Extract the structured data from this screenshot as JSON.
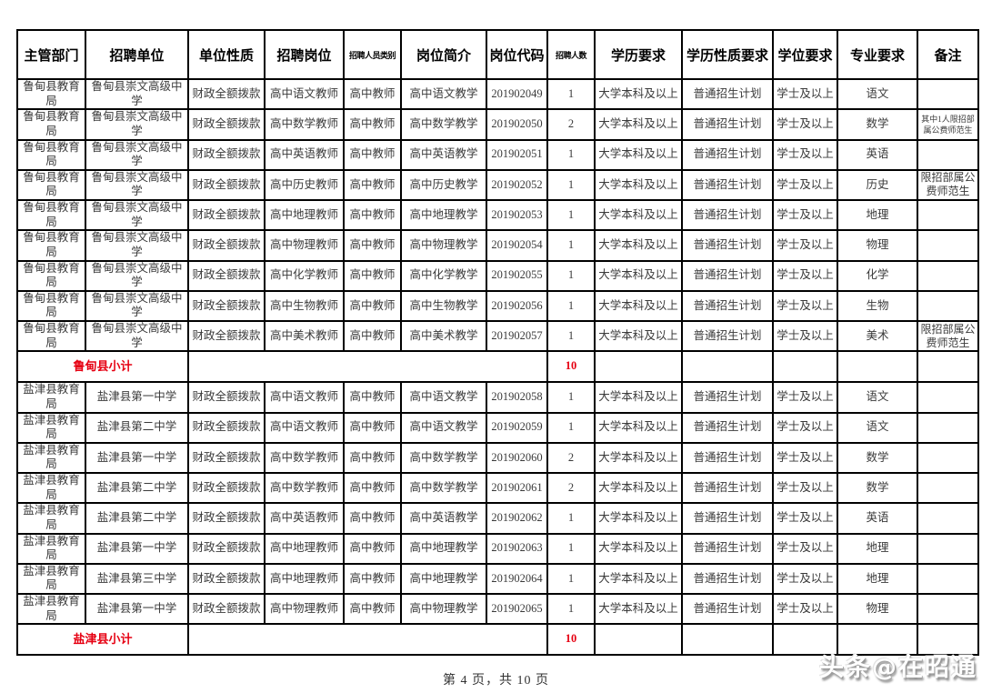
{
  "page": {
    "footer_text": "第 4 页，共 10 页",
    "watermark": "头条@在昭通"
  },
  "colors": {
    "border": "#000000",
    "text": "#333333",
    "subtotal_red": "#e60012",
    "background": "#ffffff"
  },
  "table": {
    "headers": [
      "主管部门",
      "招聘单位",
      "单位性质",
      "招聘岗位",
      "招聘人员类别",
      "岗位简介",
      "岗位代码",
      "招聘人数",
      "学历要求",
      "学历性质要求",
      "学位要求",
      "专业要求",
      "备注"
    ],
    "sections": [
      {
        "rows": [
          {
            "dept": "鲁甸县教育局",
            "unit": "鲁甸县崇文高级中学",
            "nature": "财政全额拨款",
            "post": "高中语文教师",
            "category": "高中教师",
            "intro": "高中语文教学",
            "code": "201902049",
            "count": "1",
            "edu": "大学本科及以上",
            "edu_type": "普通招生计划",
            "degree": "学士及以上",
            "major": "语文",
            "remark": "",
            "remark_small": false
          },
          {
            "dept": "鲁甸县教育局",
            "unit": "鲁甸县崇文高级中学",
            "nature": "财政全额拨款",
            "post": "高中数学教师",
            "category": "高中教师",
            "intro": "高中数学教学",
            "code": "201902050",
            "count": "2",
            "edu": "大学本科及以上",
            "edu_type": "普通招生计划",
            "degree": "学士及以上",
            "major": "数学",
            "remark": "其中1人限招部属公费师范生",
            "remark_small": true
          },
          {
            "dept": "鲁甸县教育局",
            "unit": "鲁甸县崇文高级中学",
            "nature": "财政全额拨款",
            "post": "高中英语教师",
            "category": "高中教师",
            "intro": "高中英语教学",
            "code": "201902051",
            "count": "1",
            "edu": "大学本科及以上",
            "edu_type": "普通招生计划",
            "degree": "学士及以上",
            "major": "英语",
            "remark": "",
            "remark_small": false
          },
          {
            "dept": "鲁甸县教育局",
            "unit": "鲁甸县崇文高级中学",
            "nature": "财政全额拨款",
            "post": "高中历史教师",
            "category": "高中教师",
            "intro": "高中历史教学",
            "code": "201902052",
            "count": "1",
            "edu": "大学本科及以上",
            "edu_type": "普通招生计划",
            "degree": "学士及以上",
            "major": "历史",
            "remark": "限招部属公费师范生",
            "remark_small": false
          },
          {
            "dept": "鲁甸县教育局",
            "unit": "鲁甸县崇文高级中学",
            "nature": "财政全额拨款",
            "post": "高中地理教师",
            "category": "高中教师",
            "intro": "高中地理教学",
            "code": "201902053",
            "count": "1",
            "edu": "大学本科及以上",
            "edu_type": "普通招生计划",
            "degree": "学士及以上",
            "major": "地理",
            "remark": "",
            "remark_small": false
          },
          {
            "dept": "鲁甸县教育局",
            "unit": "鲁甸县崇文高级中学",
            "nature": "财政全额拨款",
            "post": "高中物理教师",
            "category": "高中教师",
            "intro": "高中物理教学",
            "code": "201902054",
            "count": "1",
            "edu": "大学本科及以上",
            "edu_type": "普通招生计划",
            "degree": "学士及以上",
            "major": "物理",
            "remark": "",
            "remark_small": false
          },
          {
            "dept": "鲁甸县教育局",
            "unit": "鲁甸县崇文高级中学",
            "nature": "财政全额拨款",
            "post": "高中化学教师",
            "category": "高中教师",
            "intro": "高中化学教学",
            "code": "201902055",
            "count": "1",
            "edu": "大学本科及以上",
            "edu_type": "普通招生计划",
            "degree": "学士及以上",
            "major": "化学",
            "remark": "",
            "remark_small": false
          },
          {
            "dept": "鲁甸县教育局",
            "unit": "鲁甸县崇文高级中学",
            "nature": "财政全额拨款",
            "post": "高中生物教师",
            "category": "高中教师",
            "intro": "高中生物教学",
            "code": "201902056",
            "count": "1",
            "edu": "大学本科及以上",
            "edu_type": "普通招生计划",
            "degree": "学士及以上",
            "major": "生物",
            "remark": "",
            "remark_small": false
          },
          {
            "dept": "鲁甸县教育局",
            "unit": "鲁甸县崇文高级中学",
            "nature": "财政全额拨款",
            "post": "高中美术教师",
            "category": "高中教师",
            "intro": "高中美术教学",
            "code": "201902057",
            "count": "1",
            "edu": "大学本科及以上",
            "edu_type": "普通招生计划",
            "degree": "学士及以上",
            "major": "美术",
            "remark": "限招部属公费师范生",
            "remark_small": false
          }
        ],
        "subtotal": {
          "label": "鲁甸县小计",
          "count": "10"
        }
      },
      {
        "rows": [
          {
            "dept": "盐津县教育局",
            "unit": "盐津县第一中学",
            "nature": "财政全额拨款",
            "post": "高中语文教师",
            "category": "高中教师",
            "intro": "高中语文教学",
            "code": "201902058",
            "count": "1",
            "edu": "大学本科及以上",
            "edu_type": "普通招生计划",
            "degree": "学士及以上",
            "major": "语文",
            "remark": "",
            "remark_small": false
          },
          {
            "dept": "盐津县教育局",
            "unit": "盐津县第二中学",
            "nature": "财政全额拨款",
            "post": "高中语文教师",
            "category": "高中教师",
            "intro": "高中语文教学",
            "code": "201902059",
            "count": "1",
            "edu": "大学本科及以上",
            "edu_type": "普通招生计划",
            "degree": "学士及以上",
            "major": "语文",
            "remark": "",
            "remark_small": false
          },
          {
            "dept": "盐津县教育局",
            "unit": "盐津县第一中学",
            "nature": "财政全额拨款",
            "post": "高中数学教师",
            "category": "高中教师",
            "intro": "高中数学教学",
            "code": "201902060",
            "count": "2",
            "edu": "大学本科及以上",
            "edu_type": "普通招生计划",
            "degree": "学士及以上",
            "major": "数学",
            "remark": "",
            "remark_small": false
          },
          {
            "dept": "盐津县教育局",
            "unit": "盐津县第二中学",
            "nature": "财政全额拨款",
            "post": "高中数学教师",
            "category": "高中教师",
            "intro": "高中数学教学",
            "code": "201902061",
            "count": "2",
            "edu": "大学本科及以上",
            "edu_type": "普通招生计划",
            "degree": "学士及以上",
            "major": "数学",
            "remark": "",
            "remark_small": false
          },
          {
            "dept": "盐津县教育局",
            "unit": "盐津县第二中学",
            "nature": "财政全额拨款",
            "post": "高中英语教师",
            "category": "高中教师",
            "intro": "高中英语教学",
            "code": "201902062",
            "count": "1",
            "edu": "大学本科及以上",
            "edu_type": "普通招生计划",
            "degree": "学士及以上",
            "major": "英语",
            "remark": "",
            "remark_small": false
          },
          {
            "dept": "盐津县教育局",
            "unit": "盐津县第一中学",
            "nature": "财政全额拨款",
            "post": "高中地理教师",
            "category": "高中教师",
            "intro": "高中地理教学",
            "code": "201902063",
            "count": "1",
            "edu": "大学本科及以上",
            "edu_type": "普通招生计划",
            "degree": "学士及以上",
            "major": "地理",
            "remark": "",
            "remark_small": false
          },
          {
            "dept": "盐津县教育局",
            "unit": "盐津县第三中学",
            "nature": "财政全额拨款",
            "post": "高中地理教师",
            "category": "高中教师",
            "intro": "高中地理教学",
            "code": "201902064",
            "count": "1",
            "edu": "大学本科及以上",
            "edu_type": "普通招生计划",
            "degree": "学士及以上",
            "major": "地理",
            "remark": "",
            "remark_small": false
          },
          {
            "dept": "盐津县教育局",
            "unit": "盐津县第一中学",
            "nature": "财政全额拨款",
            "post": "高中物理教师",
            "category": "高中教师",
            "intro": "高中物理教学",
            "code": "201902065",
            "count": "1",
            "edu": "大学本科及以上",
            "edu_type": "普通招生计划",
            "degree": "学士及以上",
            "major": "物理",
            "remark": "",
            "remark_small": false
          }
        ],
        "subtotal": {
          "label": "盐津县小计",
          "count": "10"
        }
      }
    ]
  }
}
